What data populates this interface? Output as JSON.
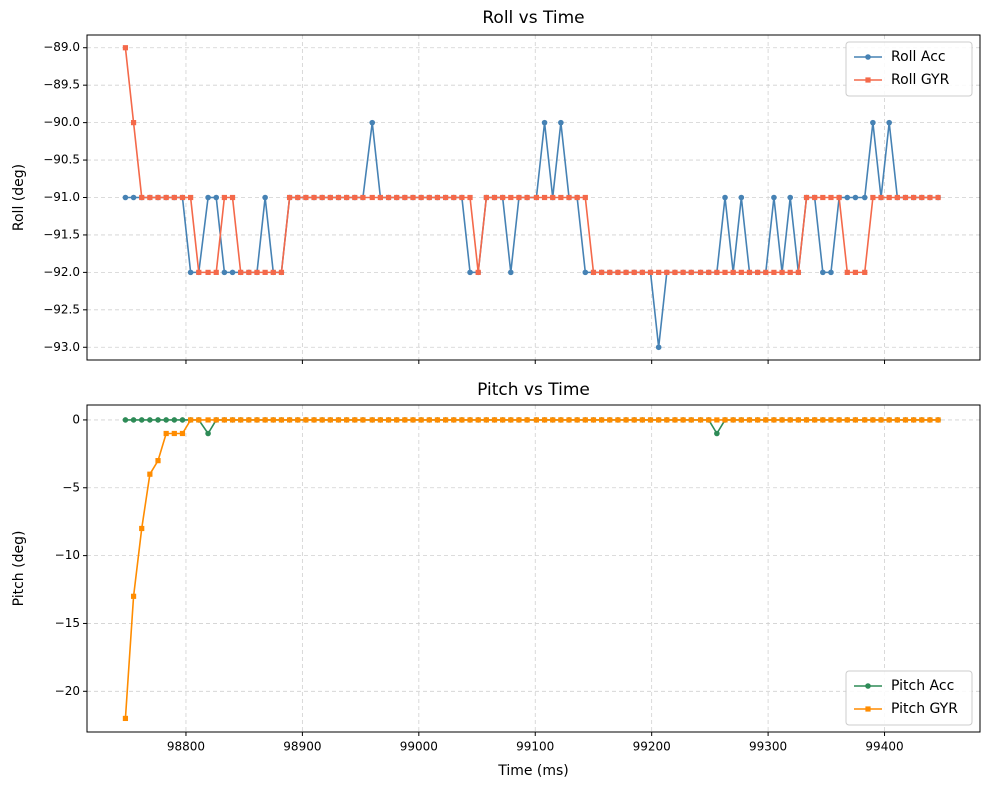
{
  "chart_data": [
    {
      "type": "line",
      "title": "Roll vs Time",
      "ylabel": "Roll (deg)",
      "x": [
        98748,
        98755,
        98762,
        98769,
        98776,
        98783,
        98790,
        98797,
        98804,
        98811,
        98819,
        98826,
        98833,
        98840,
        98847,
        98854,
        98861,
        98868,
        98875,
        98882,
        98889,
        98896,
        98903,
        98910,
        98917,
        98924,
        98931,
        98938,
        98945,
        98952,
        98960,
        98967,
        98974,
        98981,
        98988,
        98995,
        99002,
        99009,
        99016,
        99023,
        99030,
        99037,
        99044,
        99051,
        99058,
        99065,
        99072,
        99079,
        99086,
        99093,
        99101,
        99108,
        99115,
        99122,
        99129,
        99136,
        99143,
        99150,
        99157,
        99164,
        99171,
        99178,
        99185,
        99192,
        99199,
        99206,
        99213,
        99220,
        99227,
        99234,
        99242,
        99249,
        99256,
        99263,
        99270,
        99277,
        99284,
        99291,
        99298,
        99305,
        99312,
        99319,
        99326,
        99333,
        99340,
        99347,
        99354,
        99361,
        99368,
        99375,
        99383,
        99390,
        99397,
        99404,
        99411,
        99418,
        99425,
        99432,
        99439,
        99446
      ],
      "series": [
        {
          "name": "Roll Acc",
          "color": "#4682b4",
          "marker": "o",
          "values": [
            -91,
            -91,
            -91,
            -91,
            -91,
            -91,
            -91,
            -91,
            -92,
            -92,
            -91,
            -91,
            -92,
            -92,
            -92,
            -92,
            -92,
            -91,
            -92,
            -92,
            -91,
            -91,
            -91,
            -91,
            -91,
            -91,
            -91,
            -91,
            -91,
            -91,
            -90,
            -91,
            -91,
            -91,
            -91,
            -91,
            -91,
            -91,
            -91,
            -91,
            -91,
            -91,
            -92,
            -92,
            -91,
            -91,
            -91,
            -92,
            -91,
            -91,
            -91,
            -90,
            -91,
            -90,
            -91,
            -91,
            -92,
            -92,
            -92,
            -92,
            -92,
            -92,
            -92,
            -92,
            -92,
            -93,
            -92,
            -92,
            -92,
            -92,
            -92,
            -92,
            -92,
            -91,
            -92,
            -91,
            -92,
            -92,
            -92,
            -91,
            -92,
            -91,
            -92,
            -91,
            -91,
            -92,
            -92,
            -91,
            -91,
            -91,
            -91,
            -90,
            -91,
            -90,
            -91,
            -91,
            -91,
            -91,
            -91,
            -91
          ]
        },
        {
          "name": "Roll GYR",
          "color": "#f4694a",
          "marker": "s",
          "values": [
            -89,
            -90,
            -91,
            -91,
            -91,
            -91,
            -91,
            -91,
            -91,
            -92,
            -92,
            -92,
            -91,
            -91,
            -92,
            -92,
            -92,
            -92,
            -92,
            -92,
            -91,
            -91,
            -91,
            -91,
            -91,
            -91,
            -91,
            -91,
            -91,
            -91,
            -91,
            -91,
            -91,
            -91,
            -91,
            -91,
            -91,
            -91,
            -91,
            -91,
            -91,
            -91,
            -91,
            -92,
            -91,
            -91,
            -91,
            -91,
            -91,
            -91,
            -91,
            -91,
            -91,
            -91,
            -91,
            -91,
            -91,
            -92,
            -92,
            -92,
            -92,
            -92,
            -92,
            -92,
            -92,
            -92,
            -92,
            -92,
            -92,
            -92,
            -92,
            -92,
            -92,
            -92,
            -92,
            -92,
            -92,
            -92,
            -92,
            -92,
            -92,
            -92,
            -92,
            -91,
            -91,
            -91,
            -91,
            -91,
            -92,
            -92,
            -92,
            -91,
            -91,
            -91,
            -91,
            -91,
            -91,
            -91,
            -91,
            -91
          ]
        }
      ],
      "xlim": [
        98715,
        99482
      ],
      "xticks": [
        98800,
        98900,
        99000,
        99100,
        99200,
        99300,
        99400
      ],
      "ylim": [
        -93.17,
        -88.83
      ],
      "yticks": [
        {
          "value": -89,
          "label": "−89.0"
        },
        {
          "value": -89.5,
          "label": "−89.5"
        },
        {
          "value": -90,
          "label": "−90.0"
        },
        {
          "value": -90.5,
          "label": "−90.5"
        },
        {
          "value": -91,
          "label": "−91.0"
        },
        {
          "value": -91.5,
          "label": "−91.5"
        },
        {
          "value": -92,
          "label": "−92.0"
        },
        {
          "value": -92.5,
          "label": "−92.5"
        },
        {
          "value": -93,
          "label": "−93.0"
        }
      ],
      "grid": true,
      "legend": "upper right"
    },
    {
      "type": "line",
      "title": "Pitch vs Time",
      "ylabel": "Pitch (deg)",
      "xlabel": "Time (ms)",
      "x": [
        98748,
        98755,
        98762,
        98769,
        98776,
        98783,
        98790,
        98797,
        98804,
        98811,
        98819,
        98826,
        98833,
        98840,
        98847,
        98854,
        98861,
        98868,
        98875,
        98882,
        98889,
        98896,
        98903,
        98910,
        98917,
        98924,
        98931,
        98938,
        98945,
        98952,
        98960,
        98967,
        98974,
        98981,
        98988,
        98995,
        99002,
        99009,
        99016,
        99023,
        99030,
        99037,
        99044,
        99051,
        99058,
        99065,
        99072,
        99079,
        99086,
        99093,
        99101,
        99108,
        99115,
        99122,
        99129,
        99136,
        99143,
        99150,
        99157,
        99164,
        99171,
        99178,
        99185,
        99192,
        99199,
        99206,
        99213,
        99220,
        99227,
        99234,
        99242,
        99249,
        99256,
        99263,
        99270,
        99277,
        99284,
        99291,
        99298,
        99305,
        99312,
        99319,
        99326,
        99333,
        99340,
        99347,
        99354,
        99361,
        99368,
        99375,
        99383,
        99390,
        99397,
        99404,
        99411,
        99418,
        99425,
        99432,
        99439,
        99446
      ],
      "series": [
        {
          "name": "Pitch Acc",
          "color": "#2e8b57",
          "marker": "o",
          "values": [
            0,
            0,
            0,
            0,
            0,
            0,
            0,
            0,
            0,
            0,
            -1,
            0,
            0,
            0,
            0,
            0,
            0,
            0,
            0,
            0,
            0,
            0,
            0,
            0,
            0,
            0,
            0,
            0,
            0,
            0,
            0,
            0,
            0,
            0,
            0,
            0,
            0,
            0,
            0,
            0,
            0,
            0,
            0,
            0,
            0,
            0,
            0,
            0,
            0,
            0,
            0,
            0,
            0,
            0,
            0,
            0,
            0,
            0,
            0,
            0,
            0,
            0,
            0,
            0,
            0,
            0,
            0,
            0,
            0,
            0,
            0,
            0,
            -1,
            0,
            0,
            0,
            0,
            0,
            0,
            0,
            0,
            0,
            0,
            0,
            0,
            0,
            0,
            0,
            0,
            0,
            0,
            0,
            0,
            0,
            0,
            0,
            0,
            0,
            0,
            0
          ]
        },
        {
          "name": "Pitch GYR",
          "color": "#ff8c00",
          "marker": "s",
          "values": [
            -22,
            -13,
            -8,
            -4,
            -3,
            -1,
            -1,
            -1,
            0,
            0,
            0,
            0,
            0,
            0,
            0,
            0,
            0,
            0,
            0,
            0,
            0,
            0,
            0,
            0,
            0,
            0,
            0,
            0,
            0,
            0,
            0,
            0,
            0,
            0,
            0,
            0,
            0,
            0,
            0,
            0,
            0,
            0,
            0,
            0,
            0,
            0,
            0,
            0,
            0,
            0,
            0,
            0,
            0,
            0,
            0,
            0,
            0,
            0,
            0,
            0,
            0,
            0,
            0,
            0,
            0,
            0,
            0,
            0,
            0,
            0,
            0,
            0,
            0,
            0,
            0,
            0,
            0,
            0,
            0,
            0,
            0,
            0,
            0,
            0,
            0,
            0,
            0,
            0,
            0,
            0,
            0,
            0,
            0,
            0,
            0,
            0,
            0,
            0,
            0,
            0
          ]
        }
      ],
      "xlim": [
        98715,
        99482
      ],
      "xticks": [
        98800,
        98900,
        99000,
        99100,
        99200,
        99300,
        99400
      ],
      "ylim": [
        -23.0,
        1.1
      ],
      "yticks": [
        {
          "value": 0,
          "label": "0"
        },
        {
          "value": -5,
          "label": "−5"
        },
        {
          "value": -10,
          "label": "−10"
        },
        {
          "value": -15,
          "label": "−15"
        },
        {
          "value": -20,
          "label": "−20"
        }
      ],
      "grid": true,
      "legend": "lower right"
    }
  ]
}
